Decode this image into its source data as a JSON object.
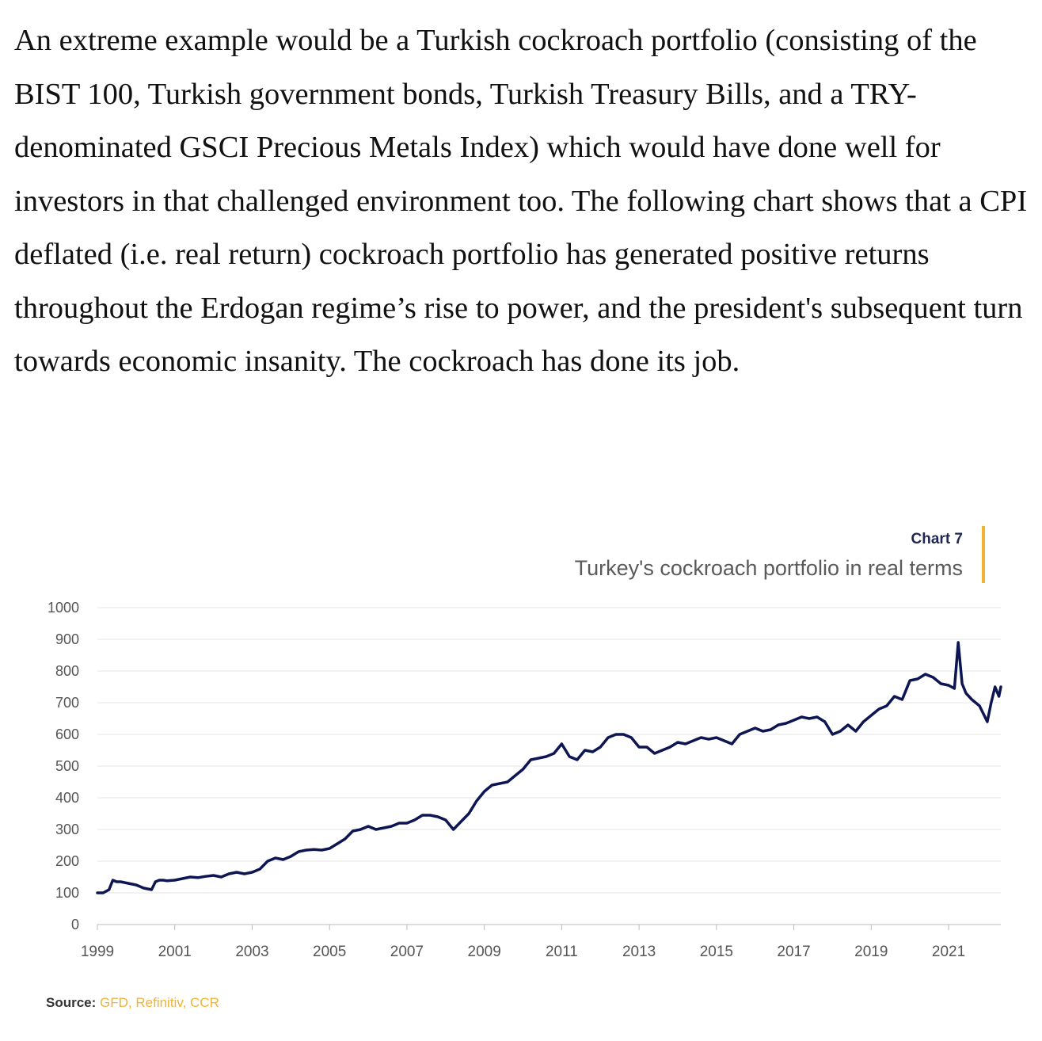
{
  "article": {
    "paragraph": "An extreme example would be a Turkish cockroach portfolio (consisting of the BIST 100, Turkish government bonds, Turkish Treasury Bills, and a TRY-denominated GSCI Precious Metals Index) which would have done well for investors in that challenged environment too. The following chart shows that a CPI deflated (i.e. real return) cockroach portfolio has generated positive returns throughout the Erdogan regime’s rise to power, and the president's subsequent turn towards economic insanity. The cockroach has done its job."
  },
  "chart": {
    "number": "Chart 7",
    "source_label": "Source:",
    "source_value": "GFD, Refinitiv, CCR"
  },
  "colors": {
    "line": "#0d1652",
    "accent": "#f2b233",
    "grid": "#e6e6e6"
  },
  "chart_data": {
    "type": "line",
    "title": "Turkey's cockroach portfolio in real terms",
    "xlabel": "",
    "ylabel": "",
    "xlim": [
      1999,
      2022.35
    ],
    "ylim": [
      0,
      1000
    ],
    "yticks": [
      0,
      100,
      200,
      300,
      400,
      500,
      600,
      700,
      800,
      900,
      1000
    ],
    "xticks": [
      "1999",
      "2001",
      "2003",
      "2005",
      "2007",
      "2009",
      "2011",
      "2013",
      "2015",
      "2017",
      "2019",
      "2021"
    ],
    "grid": true,
    "series": [
      {
        "x": [
          1999.0,
          1999.15,
          1999.3,
          1999.4,
          1999.5,
          1999.6,
          1999.8,
          2000.0,
          2000.2,
          2000.4,
          2000.5,
          2000.6,
          2000.7,
          2000.8,
          2001.0,
          2001.2,
          2001.4,
          2001.6,
          2001.8,
          2002.0,
          2002.2,
          2002.4,
          2002.6,
          2002.8,
          2003.0,
          2003.2,
          2003.4,
          2003.6,
          2003.8,
          2004.0,
          2004.2,
          2004.4,
          2004.6,
          2004.8,
          2005.0,
          2005.2,
          2005.4,
          2005.6,
          2005.8,
          2006.0,
          2006.2,
          2006.4,
          2006.6,
          2006.8,
          2007.0,
          2007.2,
          2007.4,
          2007.6,
          2007.8,
          2008.0,
          2008.2,
          2008.4,
          2008.6,
          2008.8,
          2009.0,
          2009.2,
          2009.4,
          2009.6,
          2009.8,
          2010.0,
          2010.2,
          2010.4,
          2010.6,
          2010.8,
          2011.0,
          2011.2,
          2011.4,
          2011.6,
          2011.8,
          2012.0,
          2012.2,
          2012.4,
          2012.6,
          2012.8,
          2013.0,
          2013.2,
          2013.4,
          2013.6,
          2013.8,
          2014.0,
          2014.2,
          2014.4,
          2014.6,
          2014.8,
          2015.0,
          2015.2,
          2015.4,
          2015.6,
          2015.8,
          2016.0,
          2016.2,
          2016.4,
          2016.6,
          2016.8,
          2017.0,
          2017.2,
          2017.4,
          2017.6,
          2017.8,
          2018.0,
          2018.2,
          2018.4,
          2018.6,
          2018.8,
          2019.0,
          2019.2,
          2019.4,
          2019.6,
          2019.8,
          2020.0,
          2020.2,
          2020.4,
          2020.6,
          2020.8,
          2021.0,
          2021.15,
          2021.25,
          2021.35,
          2021.45,
          2021.6,
          2021.8,
          2022.0,
          2022.1,
          2022.2,
          2022.3,
          2022.35
        ],
        "y": [
          100,
          100,
          110,
          140,
          135,
          135,
          130,
          125,
          115,
          110,
          135,
          140,
          140,
          138,
          140,
          145,
          150,
          148,
          152,
          155,
          150,
          160,
          165,
          160,
          165,
          175,
          200,
          210,
          205,
          215,
          230,
          235,
          237,
          235,
          240,
          255,
          270,
          295,
          300,
          310,
          300,
          305,
          310,
          320,
          320,
          330,
          345,
          345,
          340,
          330,
          300,
          325,
          350,
          390,
          420,
          440,
          445,
          450,
          470,
          490,
          520,
          525,
          530,
          540,
          570,
          530,
          520,
          550,
          545,
          560,
          590,
          600,
          600,
          590,
          560,
          560,
          540,
          550,
          560,
          575,
          570,
          580,
          590,
          585,
          590,
          580,
          570,
          600,
          610,
          620,
          610,
          615,
          630,
          635,
          645,
          655,
          650,
          655,
          640,
          600,
          610,
          630,
          610,
          640,
          660,
          680,
          690,
          720,
          710,
          770,
          775,
          790,
          780,
          760,
          755,
          745,
          890,
          760,
          730,
          710,
          690,
          640,
          700,
          750,
          720,
          750
        ]
      }
    ]
  }
}
